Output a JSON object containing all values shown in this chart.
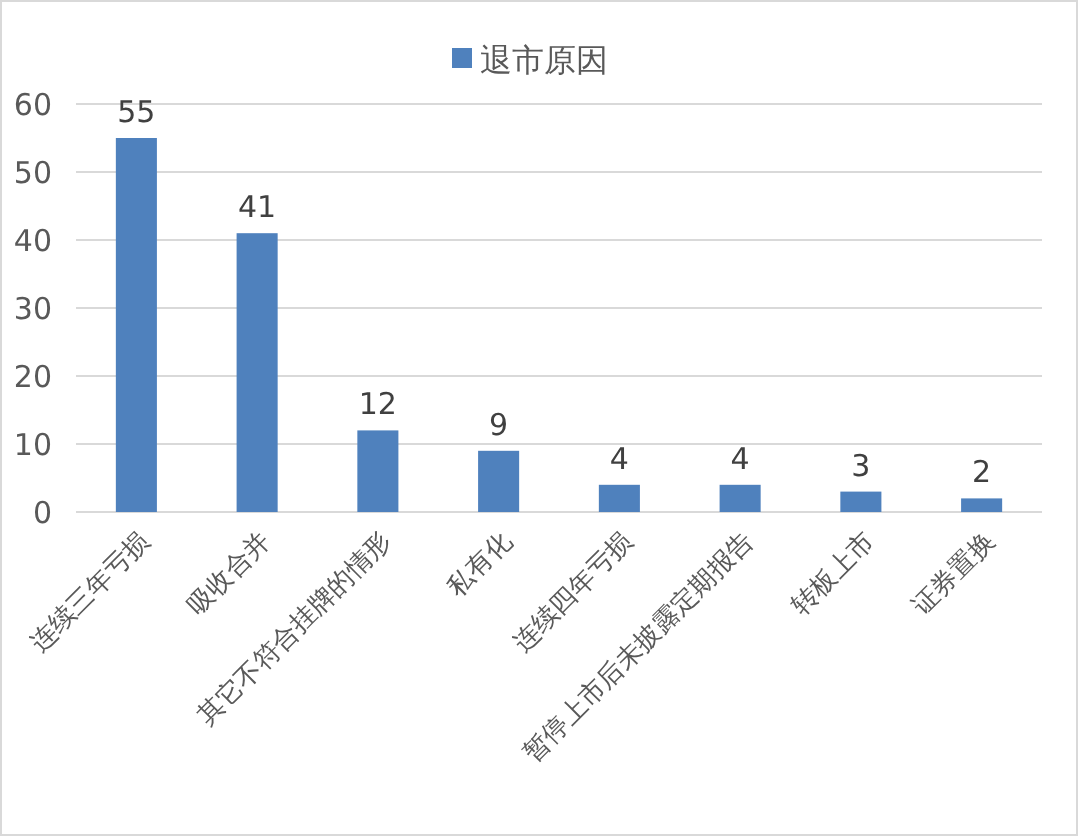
{
  "chart_data": {
    "type": "bar",
    "categories": [
      "连续三年亏损",
      "吸收合并",
      "其它不符合挂牌的情形",
      "私有化",
      "连续四年亏损",
      "暂停上市后未披露定期报告",
      "转板上市",
      "证券置换"
    ],
    "series": [
      {
        "name": "退市原因",
        "color": "#4f81bd",
        "values": [
          55,
          41,
          12,
          9,
          4,
          4,
          3,
          2
        ]
      }
    ],
    "ylim": [
      0,
      60
    ],
    "yticks": [
      0,
      10,
      20,
      30,
      40,
      50,
      60
    ],
    "grid": "y",
    "legend": "top",
    "data_labels": true
  }
}
